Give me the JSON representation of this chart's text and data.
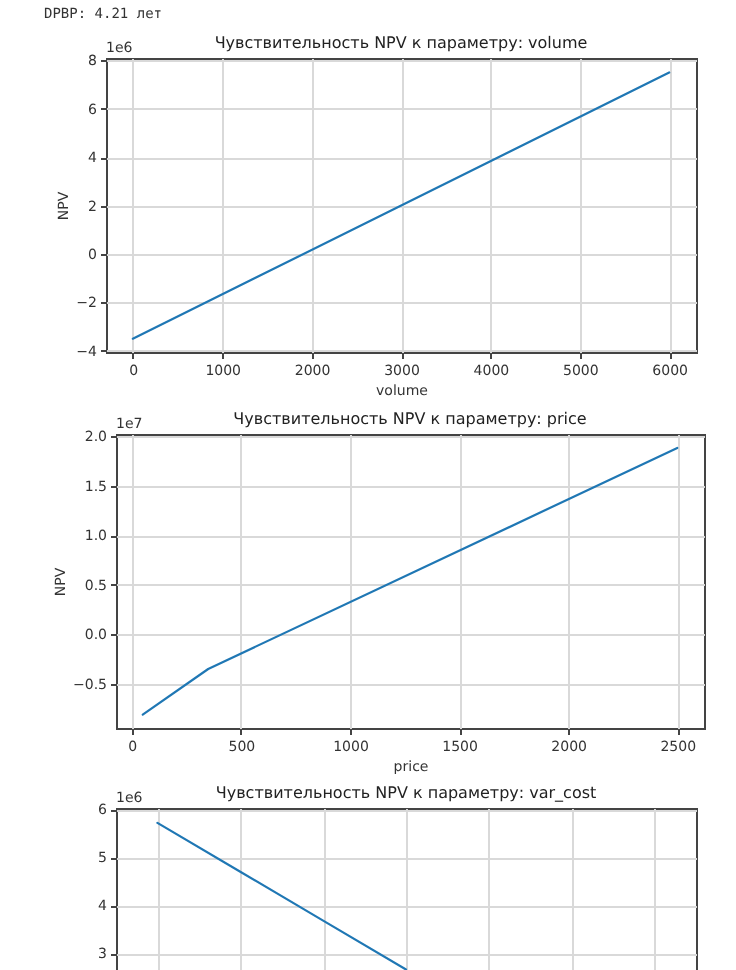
{
  "chart_data": [
    {
      "type": "other",
      "annotations": [
        "DPBP: 4.21 лет"
      ]
    },
    {
      "type": "line",
      "title": "Чувствительность NPV к параметру: volume",
      "xlabel": "volume",
      "ylabel": "NPV",
      "annotations": [
        "1e6"
      ],
      "grid": true,
      "x": [
        0,
        6000
      ],
      "series": [
        {
          "color": "#1f77b4",
          "values": [
            -3.5,
            7.5
          ]
        }
      ],
      "xlim": [
        -300,
        6300
      ],
      "xticks": [
        0,
        1000,
        2000,
        3000,
        4000,
        5000,
        6000
      ],
      "ylim": [
        -4.05,
        8.1
      ],
      "yticks": [
        -4,
        -2,
        0,
        2,
        4,
        6,
        8
      ]
    },
    {
      "type": "line",
      "title": "Чувствительность NPV к параметру: price",
      "xlabel": "price",
      "ylabel": "NPV",
      "annotations": [
        "1e7"
      ],
      "grid": true,
      "x": [
        50,
        350,
        2500
      ],
      "series": [
        {
          "color": "#1f77b4",
          "values": [
            -0.81,
            -0.35,
            1.88
          ]
        }
      ],
      "xlim": [
        -72.5,
        2622.5
      ],
      "xticks": [
        0,
        500,
        1000,
        1500,
        2000,
        2500
      ],
      "ylim": [
        -0.945,
        2.02
      ],
      "yticks": [
        -0.5,
        {
          "value": 0,
          "label": "0.0"
        },
        0.5,
        {
          "value": 1,
          "label": "1.0"
        },
        1.5,
        {
          "value": 2,
          "label": "2.0"
        }
      ]
    },
    {
      "type": "line",
      "title": "Чувствительность NPV к параметру: var_cost",
      "annotations": [
        "1e6"
      ],
      "grid": true,
      "tick_labels": "y",
      "categories": [
        null,
        null,
        null,
        null,
        null,
        null,
        null
      ],
      "series": [
        {
          "color": "#1f77b4",
          "values": [
            5.72,
            4.7,
            3.68,
            2.66,
            null,
            null,
            null
          ]
        }
      ],
      "ylim": [
        2.65,
        6.03
      ],
      "yticks": [
        3,
        4,
        5,
        6
      ]
    }
  ]
}
